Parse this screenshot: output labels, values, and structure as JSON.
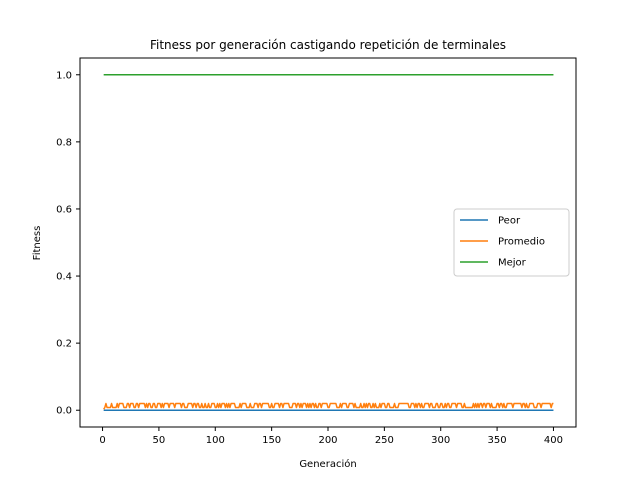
{
  "chart_data": {
    "type": "line",
    "title": "Fitness por generación castigando repetición de terminales",
    "xlabel": "Generación",
    "ylabel": "Fitness",
    "xlim": [
      -20,
      420
    ],
    "ylim": [
      -0.05,
      1.05
    ],
    "xticks": [
      0,
      50,
      100,
      150,
      200,
      250,
      300,
      350,
      400
    ],
    "yticks": [
      0.0,
      0.2,
      0.4,
      0.6,
      0.8,
      1.0
    ],
    "xtick_labels": [
      "0",
      "50",
      "100",
      "150",
      "200",
      "250",
      "300",
      "350",
      "400"
    ],
    "ytick_labels": [
      "0.0",
      "0.2",
      "0.4",
      "0.6",
      "0.8",
      "1.0"
    ],
    "grid": false,
    "legend_position": "center-right",
    "x_start": 1,
    "x_end": 400,
    "series": [
      {
        "name": "Peor",
        "color": "#1f77b4",
        "constant": 0.0
      },
      {
        "name": "Promedio",
        "color": "#ff7f0e",
        "noisy": true,
        "low": 0.008,
        "high": 0.02
      },
      {
        "name": "Mejor",
        "color": "#2ca02c",
        "constant": 1.0
      }
    ]
  }
}
